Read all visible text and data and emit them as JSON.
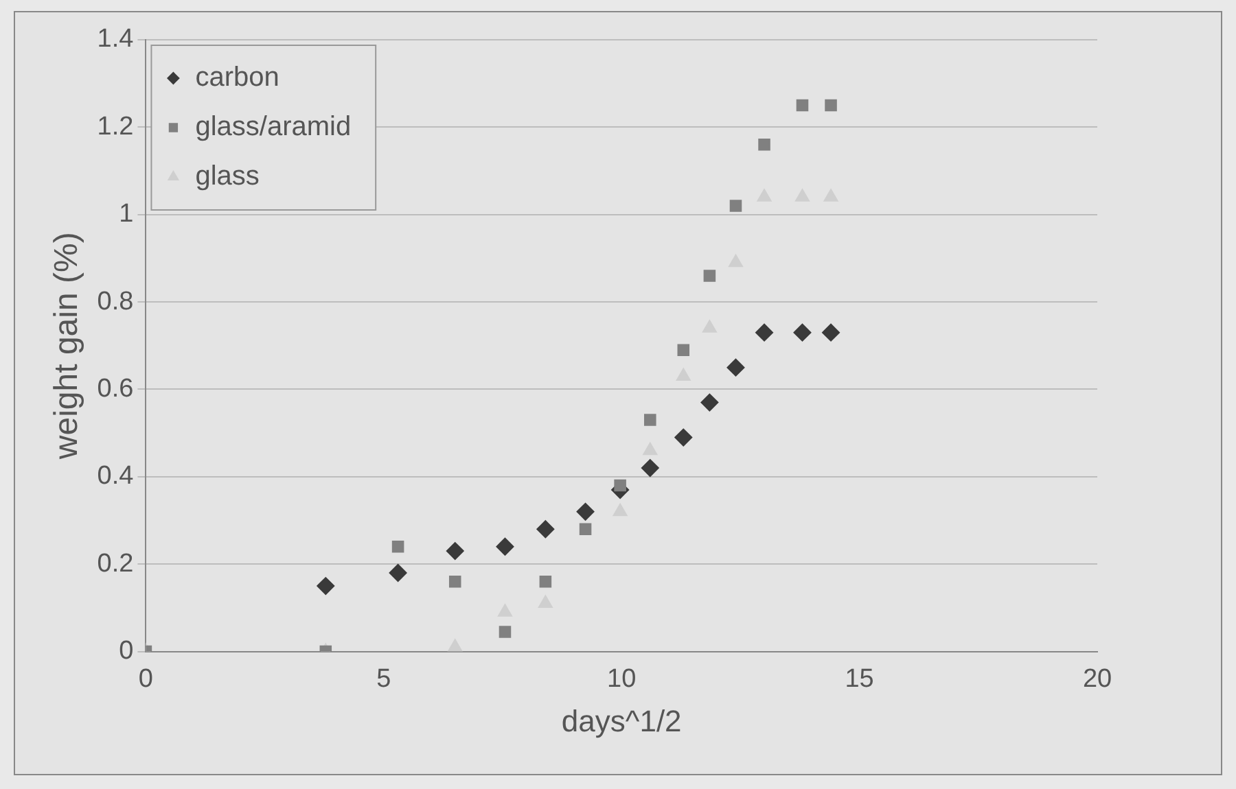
{
  "chart_data": {
    "type": "scatter",
    "xlabel": "days^1/2",
    "ylabel": "weight gain (%)",
    "xlim": [
      0,
      20
    ],
    "xticks": [
      0,
      5,
      10,
      15,
      20
    ],
    "ylim": [
      0,
      1.4
    ],
    "yticks": [
      0,
      0.2,
      0.4,
      0.6,
      0.8,
      1,
      1.2,
      1.4
    ],
    "grid": "y",
    "legend": "top left",
    "series": [
      {
        "name": "carbon",
        "color": "#3a3a3a",
        "marker": "diamond",
        "x": [
          3.78,
          5.3,
          6.5,
          7.55,
          8.4,
          9.24,
          9.97,
          10.6,
          11.3,
          11.85,
          12.4,
          13,
          13.8,
          14.4
        ],
        "values": [
          0.15,
          0.18,
          0.23,
          0.24,
          0.28,
          0.32,
          0.37,
          0.42,
          0.49,
          0.57,
          0.65,
          0.73,
          0.73,
          0.73
        ]
      },
      {
        "name": "glass/aramid",
        "color": "#808080",
        "marker": "square",
        "x": [
          0,
          3.78,
          5.3,
          6.5,
          7.55,
          8.4,
          9.24,
          9.97,
          10.6,
          11.3,
          11.85,
          12.4,
          13,
          13.8,
          14.4
        ],
        "values": [
          0,
          0,
          0.24,
          0.16,
          0.045,
          0.16,
          0.28,
          0.38,
          0.53,
          0.69,
          0.86,
          1.02,
          1.16,
          1.25,
          1.25
        ]
      },
      {
        "name": "glass",
        "color": "#cfcfcf",
        "marker": "triangle",
        "x": [
          0,
          3.78,
          6.5,
          7.55,
          8.4,
          9.97,
          10.6,
          11.3,
          11.85,
          12.4,
          13,
          13.8,
          14.4
        ],
        "values": [
          0,
          0,
          0.01,
          0.09,
          0.11,
          0.32,
          0.46,
          0.63,
          0.74,
          0.89,
          1.04,
          1.04,
          1.04
        ]
      }
    ]
  }
}
